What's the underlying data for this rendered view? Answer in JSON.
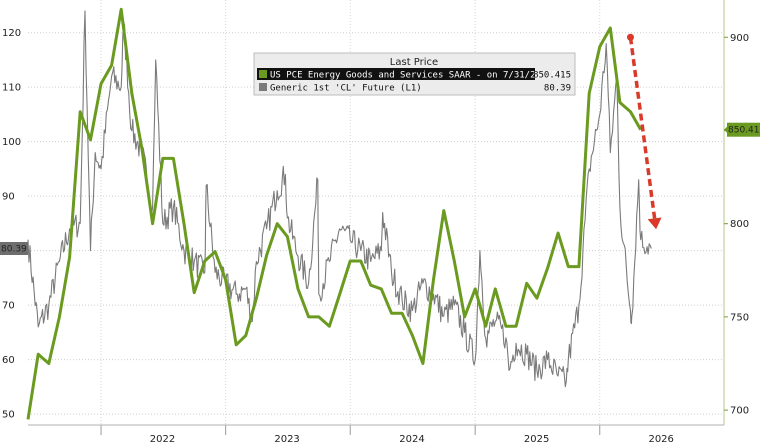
{
  "chart_data": {
    "type": "line",
    "x_range": [
      "2021-06-01",
      "2026-12-31"
    ],
    "x_ticks": [
      {
        "label": "2022",
        "date": "2022-06-30"
      },
      {
        "label": "2023",
        "date": "2023-06-30"
      },
      {
        "label": "2024",
        "date": "2024-06-30"
      },
      {
        "label": "2025",
        "date": "2025-06-30"
      },
      {
        "label": "2026",
        "date": "2026-06-30"
      }
    ],
    "x_year_boundaries": [
      "2022-01-01",
      "2023-01-01",
      "2024-01-01",
      "2025-01-01",
      "2026-01-01"
    ],
    "y_left": {
      "range": [
        48,
        126
      ],
      "ticks": [
        50,
        60,
        70,
        80,
        90,
        100,
        110,
        120
      ]
    },
    "y_right": {
      "range": [
        692,
        920
      ],
      "ticks": [
        700,
        750,
        800,
        850,
        900
      ]
    },
    "legend": {
      "title": "Last Price",
      "entries": [
        {
          "label": "US PCE Energy Goods and Services SAAR - on 7/31/26 (R1)",
          "value": "850.415",
          "color": "#6a9a1f"
        },
        {
          "label": "Generic 1st 'CL' Future (L1)",
          "value": "80.39",
          "color": "#7a7a7a"
        }
      ]
    },
    "last_labels": {
      "left": "80.39",
      "right": "850.415"
    },
    "series": [
      {
        "name": "US PCE Energy Goods and Services SAAR - on 7/31/26 (R1)",
        "axis": "right",
        "color": "#6a9a1f",
        "points": [
          [
            "2021-06-01",
            695
          ],
          [
            "2021-07-01",
            730
          ],
          [
            "2021-08-01",
            725
          ],
          [
            "2021-09-01",
            750
          ],
          [
            "2021-10-01",
            782
          ],
          [
            "2021-11-01",
            860
          ],
          [
            "2021-12-01",
            845
          ],
          [
            "2022-01-01",
            875
          ],
          [
            "2022-02-01",
            885
          ],
          [
            "2022-03-01",
            915
          ],
          [
            "2022-04-01",
            870
          ],
          [
            "2022-05-01",
            840
          ],
          [
            "2022-06-01",
            800
          ],
          [
            "2022-07-01",
            835
          ],
          [
            "2022-08-01",
            835
          ],
          [
            "2022-09-01",
            800
          ],
          [
            "2022-10-01",
            763
          ],
          [
            "2022-11-01",
            780
          ],
          [
            "2022-12-01",
            785
          ],
          [
            "2023-01-01",
            770
          ],
          [
            "2023-02-01",
            735
          ],
          [
            "2023-03-01",
            740
          ],
          [
            "2023-04-01",
            760
          ],
          [
            "2023-05-01",
            783
          ],
          [
            "2023-06-01",
            800
          ],
          [
            "2023-07-01",
            793
          ],
          [
            "2023-08-01",
            765
          ],
          [
            "2023-09-01",
            750
          ],
          [
            "2023-10-01",
            750
          ],
          [
            "2023-11-01",
            745
          ],
          [
            "2023-12-01",
            762
          ],
          [
            "2024-01-01",
            780
          ],
          [
            "2024-02-01",
            780
          ],
          [
            "2024-03-01",
            767
          ],
          [
            "2024-04-01",
            765
          ],
          [
            "2024-05-01",
            752
          ],
          [
            "2024-06-01",
            752
          ],
          [
            "2024-07-01",
            740
          ],
          [
            "2024-08-01",
            725
          ],
          [
            "2024-09-01",
            770
          ],
          [
            "2024-10-01",
            807
          ],
          [
            "2024-11-01",
            780
          ],
          [
            "2024-12-01",
            750
          ],
          [
            "2025-01-01",
            765
          ],
          [
            "2025-02-01",
            745
          ],
          [
            "2025-03-01",
            765
          ],
          [
            "2025-04-01",
            745
          ],
          [
            "2025-05-01",
            745
          ],
          [
            "2025-06-01",
            768
          ],
          [
            "2025-07-01",
            760
          ],
          [
            "2025-08-01",
            776
          ],
          [
            "2025-09-01",
            795
          ],
          [
            "2025-10-01",
            777
          ],
          [
            "2025-11-01",
            777
          ],
          [
            "2025-12-01",
            870
          ],
          [
            "2026-01-01",
            895
          ],
          [
            "2026-02-01",
            905
          ],
          [
            "2026-03-01",
            865
          ],
          [
            "2026-04-01",
            860
          ],
          [
            "2026-05-01",
            850.415
          ]
        ]
      },
      {
        "name": "Generic 1st 'CL' Future (L1)",
        "axis": "left",
        "color": "#7a7a7a",
        "anchors": [
          [
            "2021-06-01",
            82
          ],
          [
            "2021-07-01",
            66
          ],
          [
            "2021-08-01",
            70
          ],
          [
            "2021-09-01",
            78
          ],
          [
            "2021-10-01",
            84
          ],
          [
            "2021-11-01",
            85
          ],
          [
            "2021-12-01",
            80
          ],
          [
            "2022-01-01",
            95
          ],
          [
            "2022-02-01",
            112
          ],
          [
            "2022-03-01",
            110
          ],
          [
            "2022-04-01",
            102
          ],
          [
            "2022-05-01",
            98
          ],
          [
            "2022-06-01",
            88
          ],
          [
            "2022-07-01",
            85
          ],
          [
            "2022-08-01",
            88
          ],
          [
            "2022-09-01",
            80
          ],
          [
            "2022-10-01",
            78
          ],
          [
            "2022-11-01",
            76
          ],
          [
            "2022-12-01",
            76
          ],
          [
            "2023-01-01",
            74
          ],
          [
            "2023-02-01",
            72
          ],
          [
            "2023-03-01",
            73
          ],
          [
            "2023-04-01",
            78
          ],
          [
            "2023-05-01",
            84
          ],
          [
            "2023-06-01",
            91
          ],
          [
            "2023-07-01",
            86
          ],
          [
            "2023-08-01",
            79
          ],
          [
            "2023-09-01",
            74
          ],
          [
            "2023-10-01",
            72
          ],
          [
            "2023-11-01",
            78
          ],
          [
            "2023-12-01",
            84
          ],
          [
            "2024-01-01",
            82
          ],
          [
            "2024-02-01",
            80
          ],
          [
            "2024-03-01",
            78
          ],
          [
            "2024-04-01",
            80
          ],
          [
            "2024-05-01",
            76
          ],
          [
            "2024-06-01",
            71
          ],
          [
            "2024-07-01",
            69
          ],
          [
            "2024-08-01",
            74
          ],
          [
            "2024-09-01",
            72
          ],
          [
            "2024-10-01",
            68
          ],
          [
            "2024-11-01",
            70
          ],
          [
            "2024-12-01",
            65
          ],
          [
            "2025-01-01",
            60
          ],
          [
            "2025-02-01",
            64
          ],
          [
            "2025-03-01",
            67
          ],
          [
            "2025-04-01",
            64
          ],
          [
            "2025-05-01",
            63
          ],
          [
            "2025-06-01",
            61
          ],
          [
            "2025-07-01",
            58
          ],
          [
            "2025-08-01",
            60
          ],
          [
            "2025-09-01",
            57
          ],
          [
            "2025-10-01",
            60
          ],
          [
            "2025-11-01",
            70
          ],
          [
            "2025-12-01",
            95
          ],
          [
            "2026-01-01",
            105
          ],
          [
            "2026-02-01",
            98
          ],
          [
            "2026-03-01",
            88
          ],
          [
            "2026-04-01",
            69
          ],
          [
            "2026-05-01",
            82
          ],
          [
            "2026-06-01",
            80.39
          ]
        ],
        "spikes": [
          [
            "2021-11-15",
            124
          ],
          [
            "2021-12-15",
            98
          ],
          [
            "2022-03-08",
            122
          ],
          [
            "2022-06-10",
            115
          ],
          [
            "2022-11-05",
            92
          ],
          [
            "2023-03-20",
            67
          ],
          [
            "2023-06-25",
            94
          ],
          [
            "2023-09-28",
            93
          ],
          [
            "2024-04-05",
            87
          ],
          [
            "2025-01-15",
            80
          ],
          [
            "2025-04-10",
            58
          ],
          [
            "2025-09-25",
            56
          ],
          [
            "2026-01-20",
            118
          ],
          [
            "2026-02-20",
            112
          ],
          [
            "2026-04-05",
            68
          ],
          [
            "2026-04-25",
            93
          ]
        ]
      }
    ],
    "annotations": [
      {
        "type": "arrow",
        "color": "#d93a2a",
        "style": "dashed",
        "from": [
          "2026-04-01",
          900
        ],
        "to": [
          "2026-06-15",
          797
        ],
        "axis": "right"
      }
    ]
  }
}
